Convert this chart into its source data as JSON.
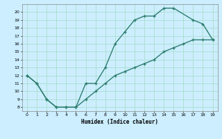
{
  "title": "",
  "xlabel": "Humidex (Indice chaleur)",
  "background_color": "#cceeff",
  "grid_color": "#aaddcc",
  "line_color": "#2d7d6e",
  "upper_x": [
    0,
    1,
    2,
    3,
    4,
    5,
    6,
    7,
    8,
    9,
    10,
    11,
    12,
    13,
    14,
    15,
    17,
    18,
    19
  ],
  "upper_y": [
    12,
    11,
    9,
    8,
    8,
    8,
    11,
    11,
    13,
    16,
    17.5,
    19,
    19.5,
    19.5,
    20.5,
    20.5,
    19,
    18.5,
    16.5
  ],
  "lower_x": [
    0,
    1,
    2,
    3,
    4,
    5,
    6,
    7,
    8,
    9,
    10,
    11,
    12,
    13,
    14,
    15,
    16,
    17,
    18,
    19
  ],
  "lower_y": [
    12,
    11,
    9,
    8,
    8,
    8,
    9,
    10,
    11,
    12,
    12.5,
    13,
    13.5,
    14,
    15,
    15.5,
    16,
    16.5,
    16.5,
    16.5
  ],
  "xlim": [
    -0.5,
    19.5
  ],
  "ylim": [
    7.5,
    21
  ],
  "yticks": [
    8,
    9,
    10,
    11,
    12,
    13,
    14,
    15,
    16,
    17,
    18,
    19,
    20
  ],
  "xticks": [
    0,
    1,
    2,
    3,
    4,
    5,
    6,
    7,
    8,
    9,
    10,
    11,
    12,
    13,
    14,
    15,
    16,
    17,
    18,
    19
  ]
}
